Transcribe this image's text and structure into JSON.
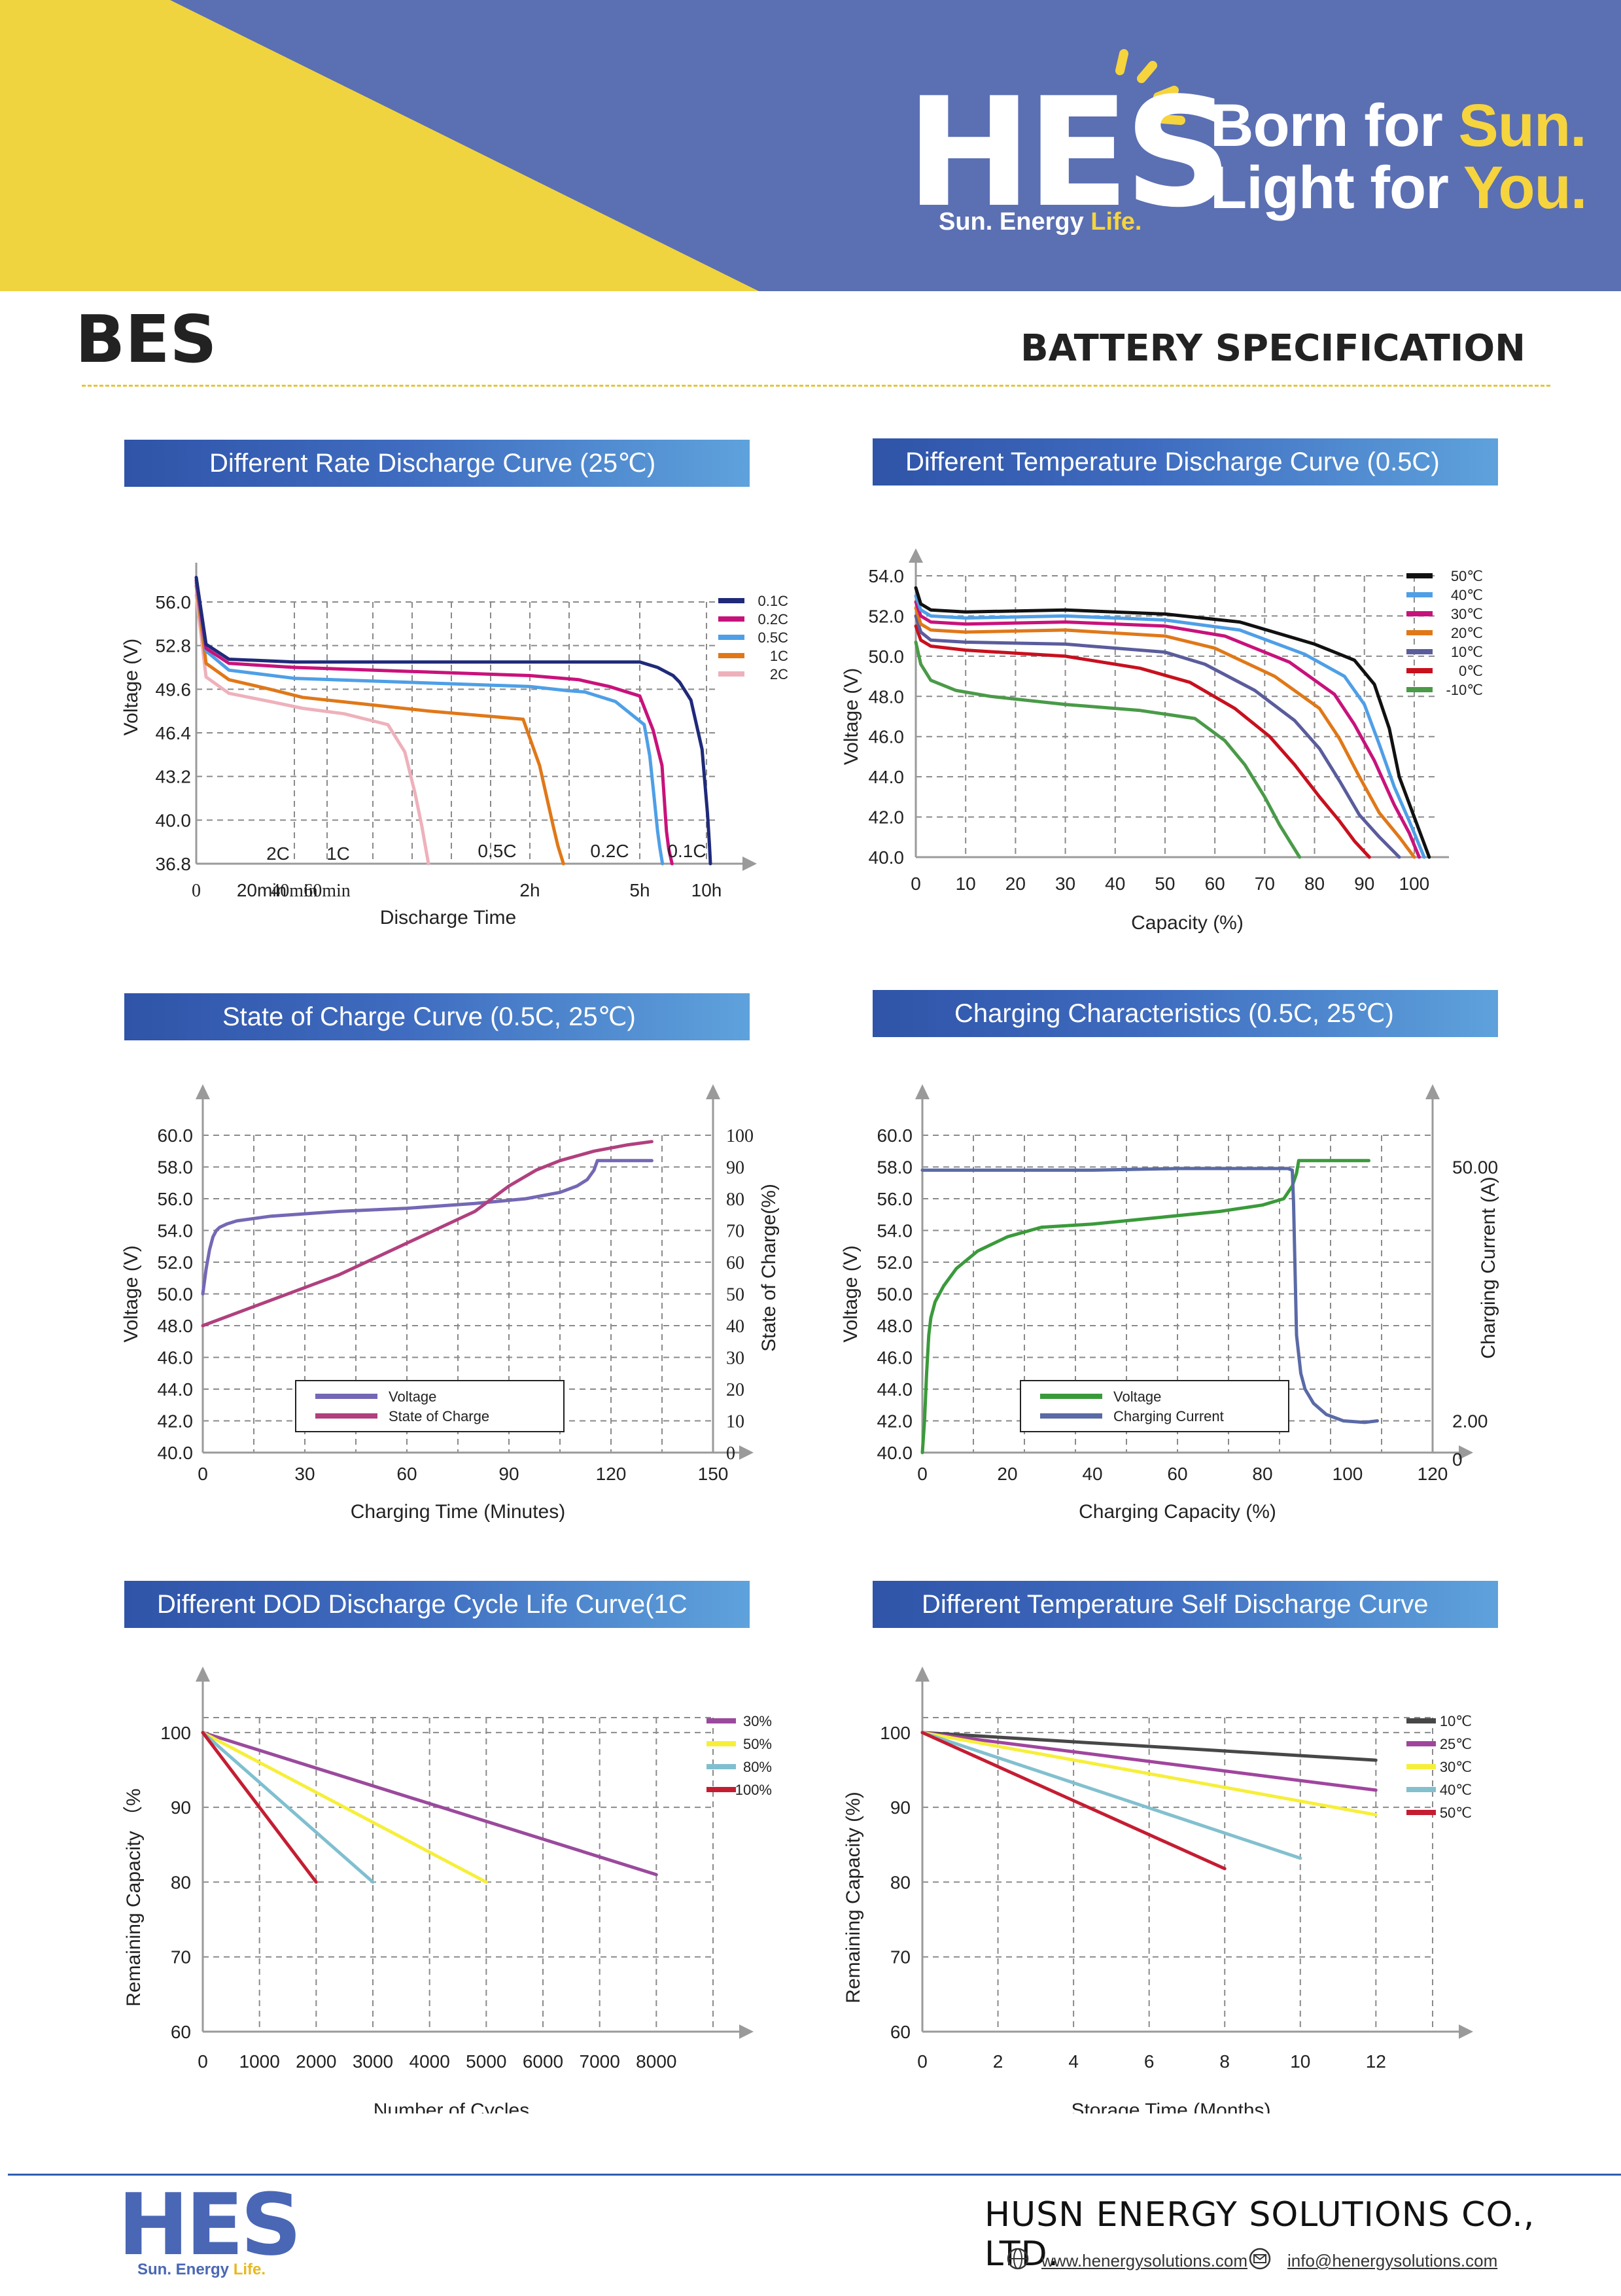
{
  "header": {
    "logo": "HES",
    "logo_sub_a": "Sun. Energy",
    "logo_sub_b": "Life.",
    "tagline1_a": "Born for ",
    "tagline1_b": "Sun.",
    "tagline2_a": "Light for ",
    "tagline2_b": "You.",
    "doc_code": "BES",
    "doc_title": "BATTERY SPECIFICATION",
    "colors": {
      "blue": "#5b6fb3",
      "yellow": "#f0d43f",
      "title_bar": "#3f6cc0"
    }
  },
  "footer": {
    "company": "HUSN ENERGY SOLUTIONS CO., LTD.",
    "website": "www.henergysolutions.com",
    "email": "info@henergysolutions.com",
    "icons": [
      "globe-icon",
      "mail-icon"
    ]
  },
  "chart_data": [
    {
      "type": "line",
      "title": "Different Rate Discharge Curve (25℃)",
      "xlabel": "Discharge Time",
      "ylabel": "Voltage (V)",
      "ylim": [
        36.8,
        56.0
      ],
      "y_ticks": [
        36.8,
        40.0,
        43.2,
        46.4,
        49.6,
        52.8,
        56.0
      ],
      "x_ticks": [
        "0",
        "20min",
        "40min",
        "60min",
        "2h",
        "5h",
        "10h"
      ],
      "x_tick_values": [
        0,
        20,
        40,
        60,
        120,
        300,
        600
      ],
      "grid": true,
      "legend": "top-right",
      "series": [
        {
          "name": "0.1C",
          "color": "#1f2a7a",
          "end_label": "0.1C",
          "x": [
            0,
            3,
            10,
            40,
            120,
            240,
            300,
            380,
            450,
            480,
            530,
            580,
            610,
            630,
            640
          ],
          "y": [
            57.8,
            52.9,
            51.8,
            51.6,
            51.6,
            51.6,
            51.6,
            51.2,
            50.6,
            50.1,
            48.8,
            45.2,
            40.5,
            38.2,
            36.8
          ]
        },
        {
          "name": "0.2C",
          "color": "#c8127b",
          "end_label": "0.2C",
          "x": [
            0,
            3,
            10,
            40,
            120,
            200,
            250,
            300,
            360,
            400,
            410,
            420,
            430,
            445
          ],
          "y": [
            57.6,
            52.6,
            51.5,
            51.2,
            50.6,
            50.3,
            49.8,
            49.1,
            46.6,
            44.0,
            41.6,
            39.2,
            37.9,
            36.8
          ]
        },
        {
          "name": "0.5C",
          "color": "#4e9fe6",
          "end_label": "0.5C",
          "x": [
            0,
            3,
            10,
            40,
            120,
            180,
            210,
            260,
            320,
            345,
            365,
            380,
            390,
            402
          ],
          "y": [
            57.4,
            52.4,
            51.0,
            50.4,
            49.8,
            49.5,
            49.4,
            48.7,
            47.0,
            44.7,
            41.6,
            39.2,
            38.0,
            36.8
          ]
        },
        {
          "name": "1C",
          "color": "#e07818",
          "end_label": "1C",
          "x": [
            0,
            3,
            10,
            25,
            45,
            90,
            118,
            136,
            150,
            158,
            166,
            175
          ],
          "y": [
            57.2,
            51.5,
            50.3,
            49.6,
            49.0,
            48.0,
            47.4,
            44.0,
            41.2,
            39.6,
            38.1,
            36.8
          ]
        },
        {
          "name": "2C",
          "color": "#eeb1bb",
          "end_label": "2C",
          "x": [
            0,
            3,
            10,
            25,
            45,
            65,
            78,
            83,
            86,
            88,
            89,
            90
          ],
          "y": [
            56.5,
            50.5,
            49.3,
            48.7,
            48.2,
            47.8,
            47.0,
            45.0,
            42.0,
            39.6,
            38.2,
            36.8
          ]
        }
      ]
    },
    {
      "type": "line",
      "title": "Different Temperature Discharge  Curve (0.5C)",
      "xlabel": "Capacity (%)",
      "ylabel": "Voltage (V)",
      "xlim": [
        0,
        105
      ],
      "ylim": [
        40.0,
        54.0
      ],
      "y_ticks": [
        40.0,
        42.0,
        44.0,
        46.0,
        48.0,
        50.0,
        52.0,
        54.0
      ],
      "x_ticks": [
        0,
        10,
        20,
        30,
        40,
        50,
        60,
        70,
        80,
        90,
        100
      ],
      "grid": true,
      "legend": "top-right",
      "series": [
        {
          "name": "50℃",
          "color": "#111111",
          "x": [
            0,
            1,
            3,
            10,
            30,
            50,
            65,
            80,
            88,
            92,
            95,
            97,
            100,
            103
          ],
          "y": [
            53.4,
            52.6,
            52.3,
            52.2,
            52.3,
            52.1,
            51.7,
            50.6,
            49.8,
            48.6,
            46.4,
            44.0,
            42.0,
            40.0
          ]
        },
        {
          "name": "40℃",
          "color": "#4e9fe6",
          "x": [
            0,
            1,
            3,
            10,
            30,
            50,
            65,
            78,
            86,
            90,
            93,
            96,
            99,
            102
          ],
          "y": [
            53.0,
            52.3,
            52.0,
            51.9,
            52.0,
            51.8,
            51.3,
            50.1,
            49.0,
            47.6,
            45.6,
            43.5,
            41.8,
            40.0
          ]
        },
        {
          "name": "30℃",
          "color": "#c8127b",
          "x": [
            0,
            1,
            3,
            10,
            30,
            50,
            62,
            75,
            84,
            88,
            92,
            96,
            99,
            101
          ],
          "y": [
            52.7,
            52.0,
            51.7,
            51.6,
            51.7,
            51.5,
            51.0,
            49.7,
            48.1,
            46.6,
            44.8,
            42.6,
            41.2,
            40.0
          ]
        },
        {
          "name": "20℃",
          "color": "#e07818",
          "x": [
            0,
            1,
            3,
            10,
            30,
            50,
            60,
            72,
            81,
            85,
            89,
            93,
            97,
            100
          ],
          "y": [
            52.4,
            51.6,
            51.3,
            51.2,
            51.3,
            51.0,
            50.4,
            49.0,
            47.4,
            45.9,
            44.0,
            42.2,
            41.0,
            40.0
          ]
        },
        {
          "name": "10℃",
          "color": "#5a5c9c",
          "x": [
            0,
            1,
            3,
            10,
            30,
            50,
            58,
            68,
            76,
            81,
            85,
            89,
            93,
            97
          ],
          "y": [
            52.0,
            51.2,
            50.8,
            50.7,
            50.6,
            50.2,
            49.6,
            48.3,
            46.8,
            45.4,
            43.8,
            42.1,
            41.0,
            40.0
          ]
        },
        {
          "name": "0℃",
          "color": "#c8101e",
          "x": [
            0,
            1,
            3,
            10,
            30,
            45,
            55,
            64,
            71,
            76,
            81,
            85,
            88,
            91
          ],
          "y": [
            51.5,
            50.8,
            50.5,
            50.3,
            50.0,
            49.4,
            48.7,
            47.4,
            46.0,
            44.6,
            43.0,
            41.8,
            40.8,
            40.0
          ]
        },
        {
          "name": "-10℃",
          "color": "#4a9a48",
          "x": [
            0,
            1,
            3,
            8,
            15,
            30,
            45,
            56,
            62,
            66,
            70,
            73,
            75,
            77
          ],
          "y": [
            50.7,
            49.6,
            48.8,
            48.3,
            48.0,
            47.6,
            47.3,
            46.9,
            45.8,
            44.6,
            43.0,
            41.6,
            40.8,
            40.0
          ]
        }
      ]
    },
    {
      "type": "line",
      "title": "State of Charge  Curve  (0.5C, 25℃)",
      "xlabel": "Charging Time (Minutes)",
      "ylabel": "Voltage (V)",
      "y2label": "State of Charge(%)",
      "xlim": [
        0,
        150
      ],
      "ylim": [
        40.0,
        60.0
      ],
      "y2lim": [
        0,
        100
      ],
      "x_ticks": [
        0,
        30,
        60,
        90,
        120,
        150
      ],
      "y_ticks": [
        40.0,
        42.0,
        44.0,
        46.0,
        48.0,
        50.0,
        52.0,
        54.0,
        56.0,
        58.0,
        60.0
      ],
      "y2_ticks": [
        0,
        10,
        20,
        30,
        40,
        50,
        60,
        70,
        80,
        90,
        100
      ],
      "grid": true,
      "legend": "bottom-center",
      "series": [
        {
          "name": "Voltage",
          "color": "#7468b5",
          "axis": "left",
          "x": [
            0,
            1,
            2,
            3,
            4,
            5,
            7,
            10,
            20,
            40,
            60,
            80,
            95,
            105,
            110,
            113,
            115,
            116,
            124,
            132
          ],
          "y": [
            50.0,
            51.6,
            52.8,
            53.6,
            54.0,
            54.2,
            54.4,
            54.6,
            54.9,
            55.2,
            55.4,
            55.7,
            56.0,
            56.4,
            56.8,
            57.2,
            57.8,
            58.4,
            58.4,
            58.4
          ]
        },
        {
          "name": "State of Charge",
          "color": "#b0407e",
          "axis": "right",
          "x": [
            0,
            20,
            40,
            60,
            80,
            90,
            98,
            105,
            115,
            125,
            132
          ],
          "y": [
            40,
            48,
            56,
            66,
            76,
            84,
            89,
            92,
            95,
            97,
            98
          ]
        }
      ]
    },
    {
      "type": "line",
      "title": "Charging Characteristics (0.5C, 25℃)",
      "xlabel": "Charging Capacity (%)",
      "ylabel": "Voltage (V)",
      "y2label": "Charging Current (A)",
      "xlim": [
        0,
        120
      ],
      "ylim": [
        40.0,
        60.0
      ],
      "x_ticks": [
        0,
        20,
        40,
        60,
        80,
        100,
        120
      ],
      "y_ticks": [
        40.0,
        42.0,
        44.0,
        46.0,
        48.0,
        50.0,
        52.0,
        54.0,
        56.0,
        58.0,
        60.0
      ],
      "y2_ticks": [
        "0",
        "2.00",
        "50.00"
      ],
      "grid": true,
      "legend": "bottom-center",
      "series": [
        {
          "name": "Voltage",
          "color": "#3a9a3a",
          "axis": "left",
          "x": [
            0,
            0.5,
            1,
            1.5,
            2,
            3,
            5,
            8,
            13,
            20,
            28,
            40,
            55,
            70,
            80,
            85,
            87,
            88,
            88.5,
            95,
            105
          ],
          "y": [
            40.0,
            42.0,
            45.0,
            47.4,
            48.5,
            49.5,
            50.5,
            51.6,
            52.7,
            53.6,
            54.2,
            54.4,
            54.8,
            55.2,
            55.6,
            56.0,
            56.8,
            57.6,
            58.4,
            58.4,
            58.4
          ]
        },
        {
          "name": "Charging Current",
          "color": "#5a6aa6",
          "axis": "right",
          "x": [
            0,
            20,
            40,
            60,
            80,
            86,
            87,
            87.3,
            87.7,
            88,
            89,
            90,
            92,
            95,
            99,
            104,
            107
          ],
          "y": [
            57.8,
            57.8,
            57.8,
            57.9,
            57.9,
            57.9,
            57.8,
            55.8,
            51.0,
            47.4,
            45.0,
            44.0,
            43.1,
            42.4,
            42.0,
            41.9,
            42.0
          ]
        }
      ]
    },
    {
      "type": "line",
      "title": "Different DOD Discharge Cycle Life Curve(1C",
      "xlabel": "Number of Cycles",
      "ylabel": "Remaining Capacity （%",
      "xlim": [
        0,
        9000
      ],
      "ylim": [
        60,
        102
      ],
      "x_ticks": [
        0,
        1000,
        2000,
        3000,
        4000,
        5000,
        6000,
        7000,
        8000
      ],
      "y_ticks": [
        60,
        70,
        80,
        90,
        100
      ],
      "grid": true,
      "legend": "top-right",
      "series": [
        {
          "name": "30%",
          "color": "#9a4a9c",
          "x": [
            0,
            8000
          ],
          "y": [
            100,
            81
          ]
        },
        {
          "name": "50%",
          "color": "#f6ef3a",
          "x": [
            0,
            5000
          ],
          "y": [
            100,
            80
          ]
        },
        {
          "name": "80%",
          "color": "#7fbfd0",
          "x": [
            0,
            3000
          ],
          "y": [
            100,
            80
          ]
        },
        {
          "name": "100%",
          "color": "#c41d32",
          "x": [
            0,
            2000
          ],
          "y": [
            100,
            80
          ]
        }
      ]
    },
    {
      "type": "line",
      "title": "Different Temperature Self Discharge Curve",
      "xlabel": "Storage Time (Months)",
      "ylabel": "Remaining Capacity (%)",
      "xlim": [
        0,
        13.5
      ],
      "ylim": [
        60,
        102
      ],
      "x_ticks": [
        0,
        2,
        4,
        6,
        8,
        10,
        12
      ],
      "y_ticks": [
        60,
        70,
        80,
        90,
        100
      ],
      "grid": true,
      "legend": "top-right",
      "series": [
        {
          "name": "10℃",
          "color": "#474747",
          "x": [
            0,
            12
          ],
          "y": [
            100,
            96.3
          ]
        },
        {
          "name": "25℃",
          "color": "#a0459e",
          "x": [
            0,
            12
          ],
          "y": [
            100,
            92.3
          ]
        },
        {
          "name": "30℃",
          "color": "#f6ef3a",
          "x": [
            0,
            12
          ],
          "y": [
            100,
            89
          ]
        },
        {
          "name": "40℃",
          "color": "#82c0ce",
          "x": [
            0,
            10
          ],
          "y": [
            100,
            83.2
          ]
        },
        {
          "name": "50℃",
          "color": "#c41d32",
          "x": [
            0,
            8
          ],
          "y": [
            100,
            81.8
          ]
        }
      ]
    }
  ]
}
